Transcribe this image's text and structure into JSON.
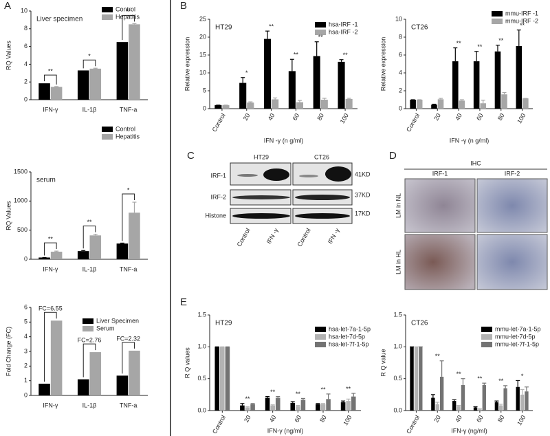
{
  "figure": {
    "panels": [
      "A",
      "B",
      "C",
      "D",
      "E"
    ],
    "blot": {
      "cells": [
        "HT29",
        "CT26"
      ],
      "rows": [
        "IRF-1",
        "IRF-2",
        "Histone"
      ],
      "sizes": [
        "41KD",
        "37KD",
        "17KD"
      ],
      "lanes": [
        "Control",
        "IFN -γ",
        "Control",
        "IFN -γ"
      ]
    },
    "ihc": {
      "title": "IHC",
      "columns": [
        "IRF-1",
        "IRF-2"
      ],
      "rows": [
        "LM in NL",
        "LM in HL"
      ]
    }
  },
  "chart_data": [
    {
      "type": "bar",
      "title": "Liver specimen",
      "ylabel": "RQ Values",
      "categories": [
        "IFN-γ",
        "IL-1β",
        "TNF-a"
      ],
      "series": [
        {
          "name": "Control",
          "color": "#000000",
          "values": [
            1.85,
            3.3,
            6.5
          ]
        },
        {
          "name": "Hepatitis",
          "color": "#a6a6a6",
          "values": [
            1.45,
            3.5,
            8.5
          ],
          "errors": [
            0.03,
            0.05,
            0.08
          ]
        }
      ],
      "ylim": [
        0,
        10
      ],
      "yticks": [
        0,
        2,
        4,
        6,
        8,
        10
      ],
      "annotations": [
        "**",
        "*",
        "**"
      ],
      "legend": "upper right"
    },
    {
      "type": "bar",
      "title": "serum",
      "ylabel": "RQ Values",
      "categories": [
        "IFN-γ",
        "IL-1β",
        "TNF-a"
      ],
      "series": [
        {
          "name": "Control",
          "color": "#000000",
          "values": [
            30,
            140,
            270
          ],
          "errors": [
            0,
            10,
            8
          ]
        },
        {
          "name": "Hepatitis",
          "color": "#a6a6a6",
          "values": [
            130,
            410,
            800
          ],
          "errors": [
            10,
            20,
            180
          ]
        }
      ],
      "ylim": [
        0,
        1500
      ],
      "yticks": [
        0,
        500,
        1000,
        1500
      ],
      "annotations": [
        "**",
        "**",
        "*"
      ],
      "legend": "upper right"
    },
    {
      "type": "bar",
      "ylabel": "Fold Change (FC)",
      "categories": [
        "IFN-γ",
        "IL-1β",
        "TNF-a"
      ],
      "series": [
        {
          "name": "Liver Specimen",
          "color": "#000000",
          "values": [
            0.8,
            1.1,
            1.35
          ]
        },
        {
          "name": "Serum",
          "color": "#a6a6a6",
          "values": [
            5.1,
            2.95,
            3.05
          ]
        }
      ],
      "ylim": [
        0,
        6
      ],
      "yticks": [
        0,
        1,
        2,
        3,
        4,
        5,
        6
      ],
      "annotations": [
        "FC=6.55",
        "FC=2.76",
        "FC=2.32"
      ],
      "legend": "upper right"
    },
    {
      "type": "bar",
      "title": "HT29",
      "ylabel": "Relative expression",
      "xlabel": "IFN -γ  (n g/ml)",
      "categories": [
        "Control",
        "20",
        "40",
        "60",
        "80",
        "100"
      ],
      "series": [
        {
          "name": "hsa-IRF -1",
          "color": "#000000",
          "values": [
            1,
            7.2,
            19.5,
            10.5,
            14.7,
            13.1
          ],
          "errors": [
            0,
            1.5,
            2.2,
            3.3,
            4,
            0.6
          ]
        },
        {
          "name": "hsa-IRF -2",
          "color": "#a6a6a6",
          "values": [
            1,
            1.7,
            2.6,
            1.8,
            2.5,
            2.7
          ],
          "errors": [
            0,
            0.2,
            0.4,
            0.5,
            0.4,
            0.2
          ]
        }
      ],
      "ylim": [
        0,
        25
      ],
      "yticks": [
        0,
        5,
        10,
        15,
        20,
        25
      ],
      "annotations": [
        null,
        "*",
        "**",
        "**",
        "**",
        "**"
      ],
      "legend": "upper right"
    },
    {
      "type": "bar",
      "title": "CT26",
      "ylabel": "Relative expression",
      "xlabel": "IFN -γ  (n g/ml)",
      "categories": [
        "Control",
        "20",
        "40",
        "60",
        "80",
        "100"
      ],
      "series": [
        {
          "name": "mmu-IRF -1",
          "color": "#000000",
          "values": [
            1,
            0.45,
            5.3,
            5.3,
            6.4,
            7
          ],
          "errors": [
            0,
            0.05,
            1.5,
            1.1,
            0.7,
            1.8
          ]
        },
        {
          "name": "mmu-IRF -2",
          "color": "#a6a6a6",
          "values": [
            1,
            1.05,
            0.9,
            0.6,
            1.6,
            1.15
          ],
          "errors": [
            0,
            0.1,
            0.1,
            0.35,
            0.2,
            0
          ]
        }
      ],
      "ylim": [
        0,
        10
      ],
      "yticks": [
        0,
        2,
        4,
        6,
        8,
        10
      ],
      "annotations": [
        null,
        null,
        "**",
        "**",
        "**",
        "**"
      ],
      "legend": "upper right"
    },
    {
      "type": "bar",
      "title": "HT29",
      "ylabel": "R Q values",
      "xlabel": "IFN-γ  (ng/ml)",
      "categories": [
        "Control",
        "20",
        "40",
        "60",
        "80",
        "100"
      ],
      "series": [
        {
          "name": "hsa-let-7a-1-5p",
          "color": "#000000",
          "values": [
            1,
            0.08,
            0.2,
            0.12,
            0.1,
            0.13
          ],
          "errors": [
            0,
            0.03,
            0.02,
            0.02,
            0.01,
            0.02
          ]
        },
        {
          "name": "hsa-let-7d-5p",
          "color": "#b3b3b3",
          "values": [
            1,
            0.05,
            0.08,
            0.07,
            0.1,
            0.15
          ],
          "errors": [
            0,
            0.01,
            0.01,
            0.01,
            0.01,
            0.03
          ]
        },
        {
          "name": "hsa-let-7f-1-5p",
          "color": "#737373",
          "values": [
            1,
            0.1,
            0.2,
            0.17,
            0.18,
            0.22
          ],
          "errors": [
            0,
            0.01,
            0.02,
            0.02,
            0.08,
            0.05
          ]
        }
      ],
      "ylim": [
        0,
        1.5
      ],
      "yticks": [
        {
          "value": 0,
          "label": "0.0"
        },
        0.5,
        {
          "value": 1,
          "label": "1.0"
        },
        1.5
      ],
      "annotations": [
        null,
        "**",
        "**",
        "**",
        "**",
        "**"
      ],
      "legend": "upper right"
    },
    {
      "type": "bar",
      "title": "CT26",
      "ylabel": "R Q value",
      "xlabel": "IFN-γ  (ng/ml)",
      "categories": [
        "Control",
        "20",
        "40",
        "60",
        "80",
        "100"
      ],
      "series": [
        {
          "name": "mmu-let-7a-1-5p",
          "color": "#000000",
          "values": [
            1,
            0.2,
            0.15,
            0.05,
            0.13,
            0.37
          ],
          "errors": [
            0,
            0.05,
            0.02,
            0.01,
            0.02,
            0.1
          ]
        },
        {
          "name": "mmu-let-7d-5p",
          "color": "#b3b3b3",
          "values": [
            1,
            0.1,
            0.07,
            0.02,
            0.08,
            0.25
          ],
          "errors": [
            0,
            0.03,
            0.01,
            0.01,
            0.02,
            0.08
          ]
        },
        {
          "name": "mmu-let-7f-1-5p",
          "color": "#737373",
          "values": [
            1,
            0.53,
            0.4,
            0.4,
            0.35,
            0.3
          ],
          "errors": [
            0,
            0.25,
            0.1,
            0.03,
            0.04,
            0.07
          ]
        }
      ],
      "ylim": [
        0,
        1.5
      ],
      "yticks": [
        {
          "value": 0,
          "label": "0.0"
        },
        0.5,
        {
          "value": 1,
          "label": "1.0"
        },
        1.5
      ],
      "annotations": [
        null,
        "**",
        "**",
        "**",
        "**",
        "*"
      ],
      "legend": "upper right"
    }
  ]
}
